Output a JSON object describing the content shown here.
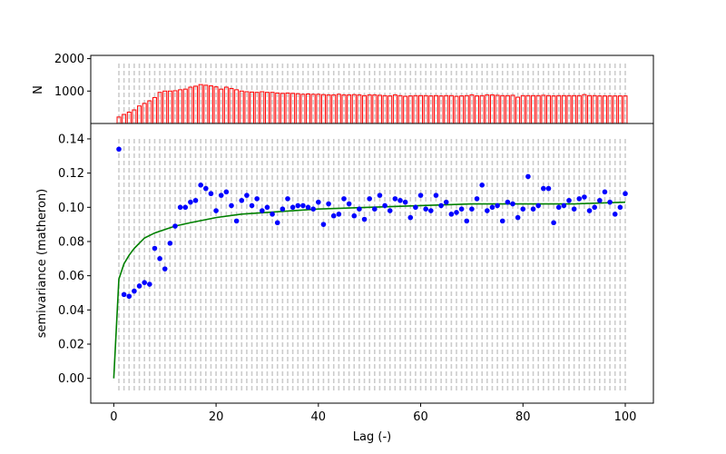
{
  "chart_data": [
    {
      "type": "bar",
      "title": "",
      "xlabel": "",
      "ylabel": "N",
      "xlim": [
        -4.5,
        105.5
      ],
      "ylim": [
        0,
        2100
      ],
      "yticks": [
        1000,
        2000
      ],
      "grid": false,
      "bar_color": "#ff0000",
      "bins": [
        1,
        2,
        3,
        4,
        5,
        6,
        7,
        8,
        9,
        10,
        11,
        12,
        13,
        14,
        15,
        16,
        17,
        18,
        19,
        20,
        21,
        22,
        23,
        24,
        25,
        26,
        27,
        28,
        29,
        30,
        31,
        32,
        33,
        34,
        35,
        36,
        37,
        38,
        39,
        40,
        41,
        42,
        43,
        44,
        45,
        46,
        47,
        48,
        49,
        50,
        51,
        52,
        53,
        54,
        55,
        56,
        57,
        58,
        59,
        60,
        61,
        62,
        63,
        64,
        65,
        66,
        67,
        68,
        69,
        70,
        71,
        72,
        73,
        74,
        75,
        76,
        77,
        78,
        79,
        80,
        81,
        82,
        83,
        84,
        85,
        86,
        87,
        88,
        89,
        90,
        91,
        92,
        93,
        94,
        95,
        96,
        97,
        98,
        99,
        100
      ],
      "values": [
        200,
        280,
        350,
        420,
        540,
        620,
        700,
        800,
        960,
        1000,
        1000,
        1010,
        1040,
        1060,
        1120,
        1150,
        1200,
        1180,
        1160,
        1130,
        1060,
        1120,
        1080,
        1040,
        1000,
        980,
        970,
        960,
        980,
        960,
        960,
        940,
        930,
        940,
        930,
        920,
        900,
        910,
        900,
        900,
        890,
        880,
        880,
        900,
        880,
        880,
        890,
        880,
        860,
        880,
        880,
        870,
        860,
        850,
        880,
        860,
        840,
        850,
        860,
        860,
        860,
        850,
        860,
        850,
        860,
        860,
        840,
        850,
        860,
        880,
        850,
        860,
        880,
        880,
        870,
        860,
        860,
        870,
        810,
        860,
        860,
        860,
        860,
        870,
        860,
        850,
        860,
        860,
        860,
        860,
        860,
        890,
        860,
        860,
        850,
        850,
        850,
        850,
        850,
        850
      ]
    },
    {
      "type": "scatter",
      "title": "",
      "xlabel": "Lag (-)",
      "ylabel": "semivariance (matheron)",
      "xlim": [
        -4.5,
        105.5
      ],
      "ylim": [
        -0.0145,
        0.149
      ],
      "xticks": [
        0,
        20,
        40,
        60,
        80,
        100
      ],
      "yticks": [
        0.0,
        0.02,
        0.04,
        0.06,
        0.08,
        0.1,
        0.12,
        0.14
      ],
      "grid": false,
      "lag_lines": "dashed vertical lines at each bin",
      "series": [
        {
          "kind": "points",
          "color": "#0000ff",
          "x": [
            1,
            2,
            3,
            4,
            5,
            6,
            7,
            8,
            9,
            10,
            11,
            12,
            13,
            14,
            15,
            16,
            17,
            18,
            19,
            20,
            21,
            22,
            23,
            24,
            25,
            26,
            27,
            28,
            29,
            30,
            31,
            32,
            33,
            34,
            35,
            36,
            37,
            38,
            39,
            40,
            41,
            42,
            43,
            44,
            45,
            46,
            47,
            48,
            49,
            50,
            51,
            52,
            53,
            54,
            55,
            56,
            57,
            58,
            59,
            60,
            61,
            62,
            63,
            64,
            65,
            66,
            67,
            68,
            69,
            70,
            71,
            72,
            73,
            74,
            75,
            76,
            77,
            78,
            79,
            80,
            81,
            82,
            83,
            84,
            85,
            86,
            87,
            88,
            89,
            90,
            91,
            92,
            93,
            94,
            95,
            96,
            97,
            98,
            99,
            100
          ],
          "y": [
            0.134,
            0.049,
            0.048,
            0.051,
            0.054,
            0.056,
            0.055,
            0.076,
            0.07,
            0.064,
            0.079,
            0.089,
            0.1,
            0.1,
            0.103,
            0.104,
            0.113,
            0.111,
            0.108,
            0.098,
            0.107,
            0.109,
            0.101,
            0.092,
            0.104,
            0.107,
            0.101,
            0.105,
            0.098,
            0.1,
            0.096,
            0.091,
            0.099,
            0.105,
            0.1,
            0.101,
            0.101,
            0.1,
            0.099,
            0.103,
            0.09,
            0.102,
            0.095,
            0.096,
            0.105,
            0.102,
            0.095,
            0.099,
            0.093,
            0.105,
            0.099,
            0.107,
            0.101,
            0.098,
            0.105,
            0.104,
            0.103,
            0.094,
            0.1,
            0.107,
            0.099,
            0.098,
            0.107,
            0.101,
            0.103,
            0.096,
            0.097,
            0.099,
            0.092,
            0.099,
            0.105,
            0.113,
            0.098,
            0.1,
            0.101,
            0.092,
            0.103,
            0.102,
            0.094,
            0.099,
            0.118,
            0.099,
            0.101,
            0.111,
            0.111,
            0.091,
            0.1,
            0.101,
            0.104,
            0.099,
            0.105,
            0.106,
            0.098,
            0.1,
            0.104,
            0.109,
            0.103,
            0.096,
            0.1,
            0.108
          ]
        },
        {
          "kind": "line",
          "color": "#008000",
          "x": [
            0,
            1,
            2,
            3,
            4,
            5,
            6,
            8,
            10,
            12,
            15,
            20,
            25,
            30,
            40,
            50,
            60,
            70,
            80,
            90,
            100
          ],
          "y": [
            0.0,
            0.058,
            0.067,
            0.072,
            0.076,
            0.079,
            0.082,
            0.085,
            0.087,
            0.089,
            0.091,
            0.094,
            0.096,
            0.097,
            0.099,
            0.1,
            0.101,
            0.102,
            0.102,
            0.102,
            0.103
          ]
        }
      ]
    }
  ]
}
